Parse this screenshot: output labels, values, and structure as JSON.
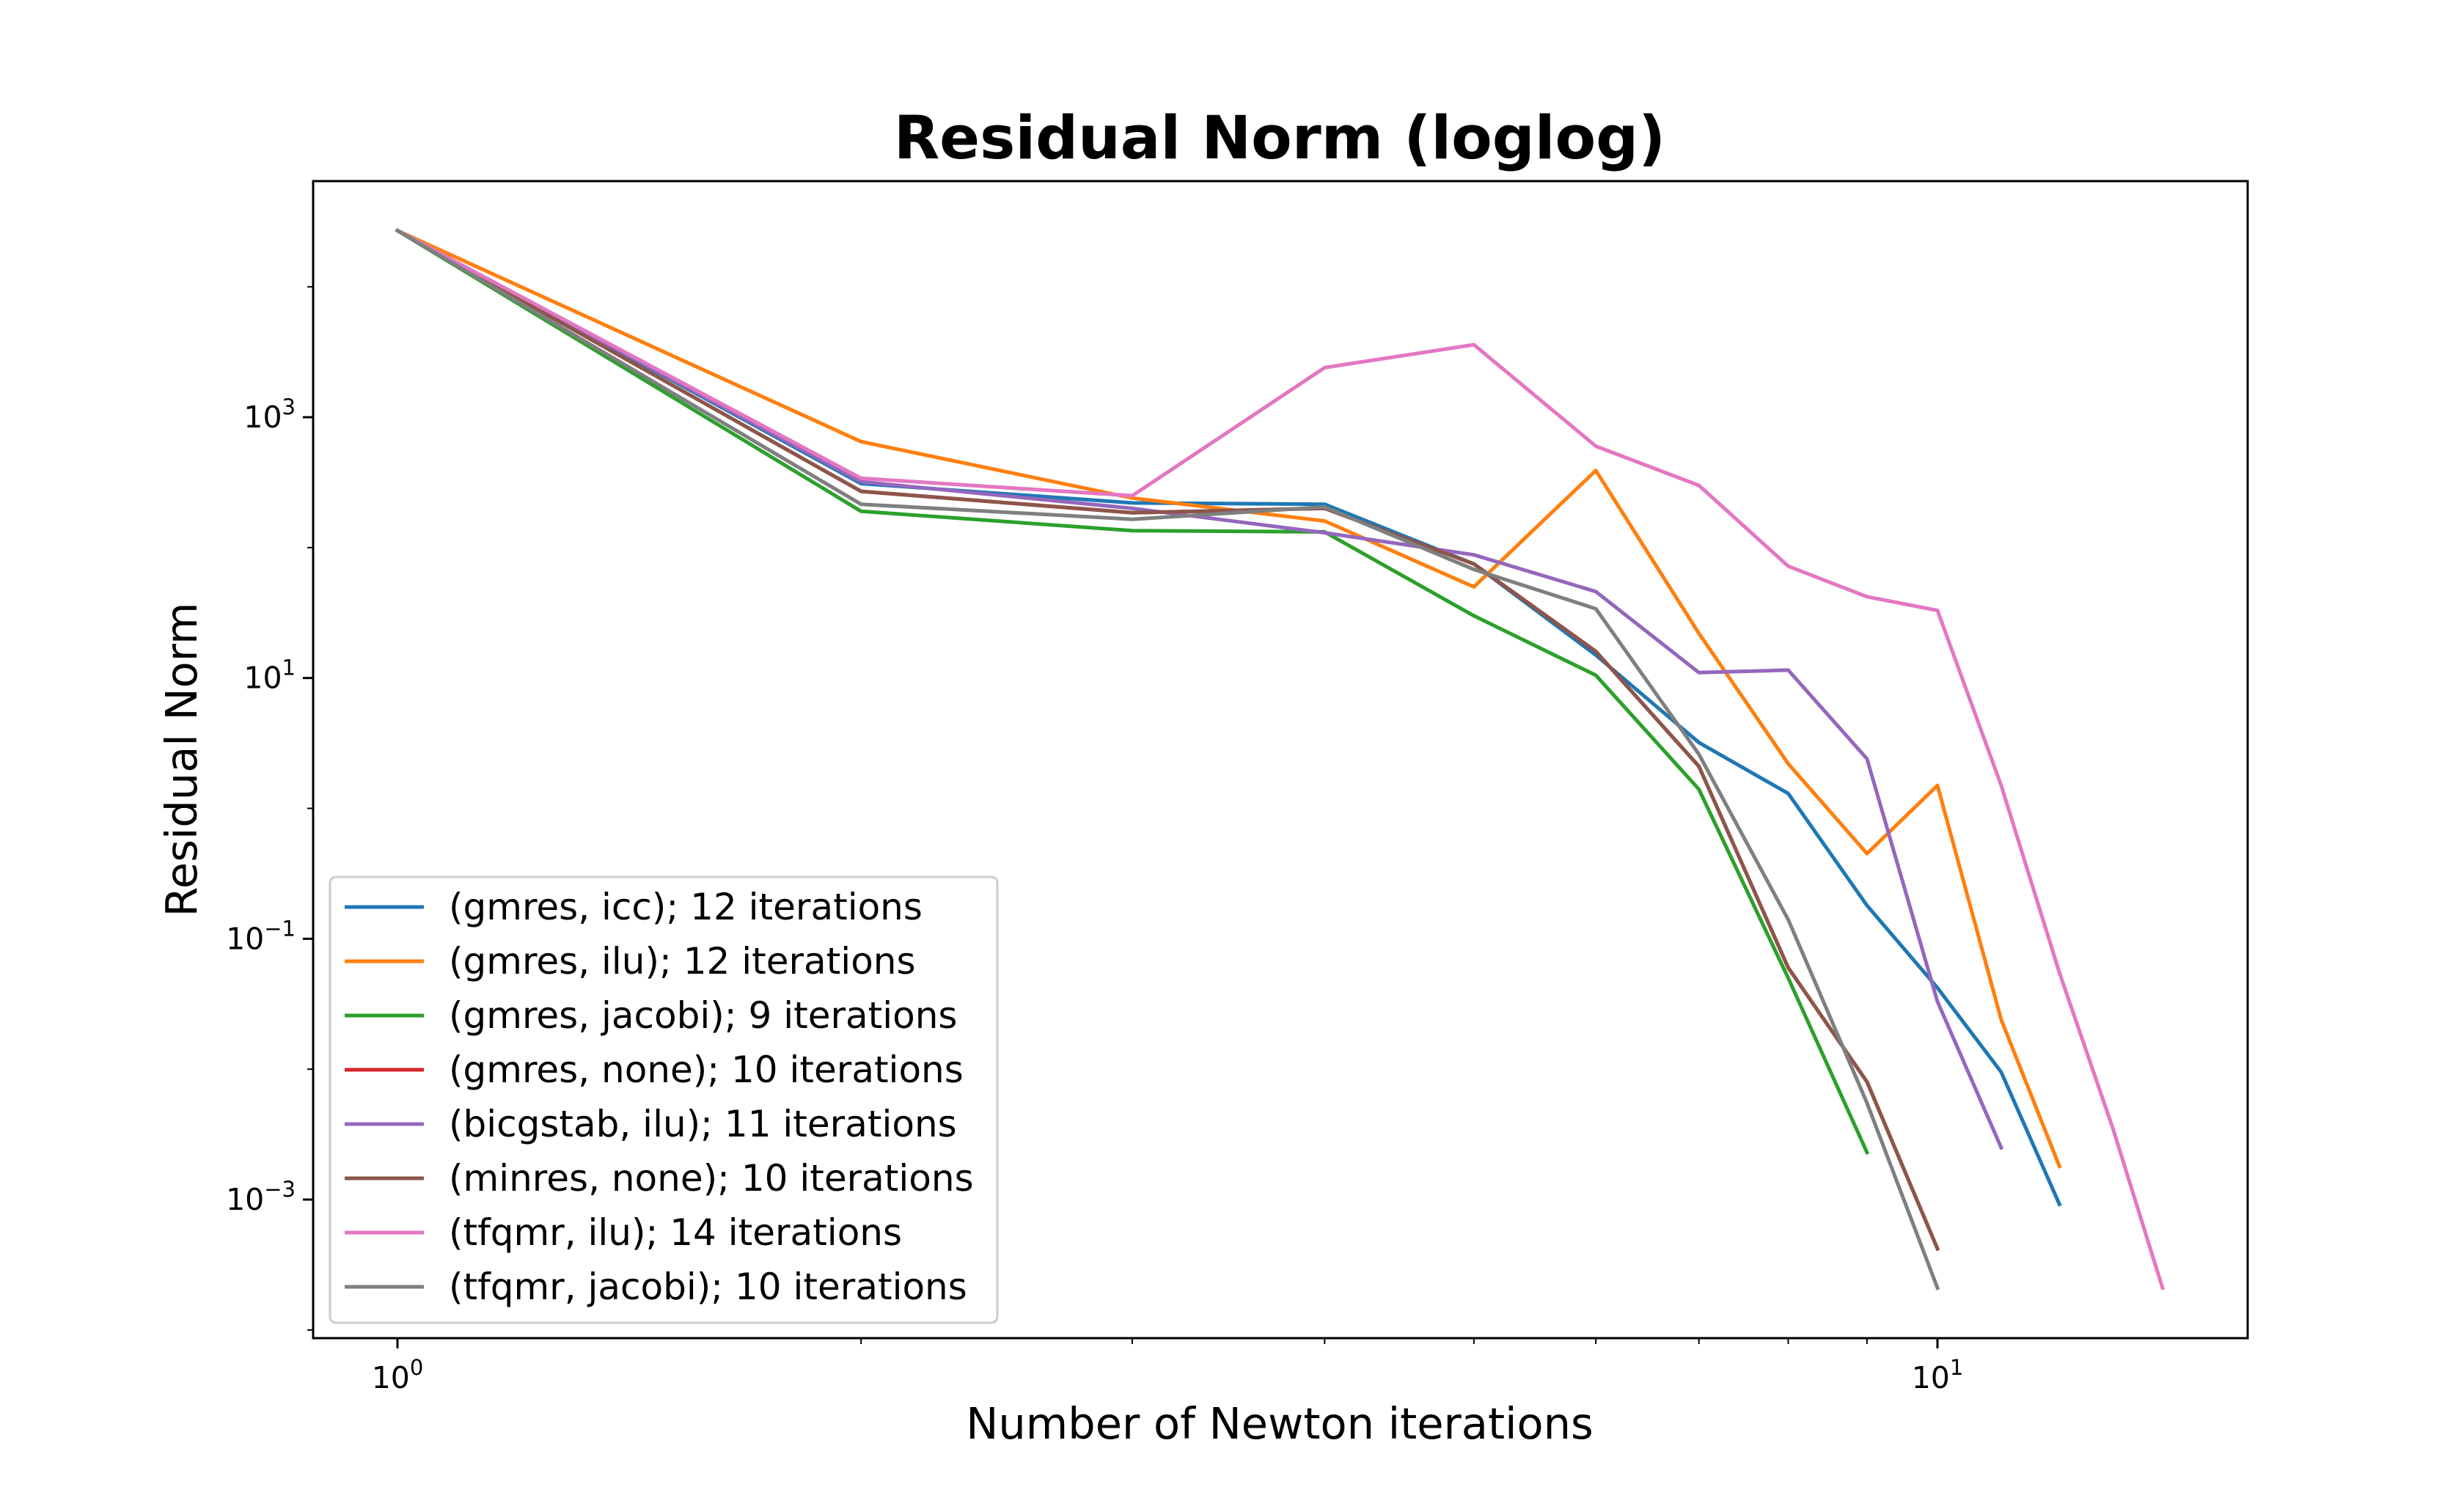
{
  "chart_data": {
    "type": "line",
    "title": "Residual Norm (loglog)",
    "xlabel": "Number of Newton iterations",
    "ylabel": "Residual Norm",
    "xscale": "log",
    "yscale": "log",
    "xlim": [
      0.95,
      16
    ],
    "ylim": [
      7e-05,
      60000
    ],
    "x_ticks": [
      {
        "base": "10",
        "exp": "0",
        "value": 1
      },
      {
        "base": "10",
        "exp": "1",
        "value": 10
      }
    ],
    "y_ticks": [
      {
        "base": "10",
        "exp": "3",
        "value": 1000
      },
      {
        "base": "10",
        "exp": "1",
        "value": 10
      },
      {
        "base": "10",
        "exp": "−1",
        "value": 0.1
      },
      {
        "base": "10",
        "exp": "−3",
        "value": 0.001
      }
    ],
    "grid": false,
    "legend_position": "lower-left",
    "series": [
      {
        "name": "(gmres, icc); 12 iterations",
        "color": "#1f77b4",
        "x": [
          1,
          2,
          3,
          4,
          5,
          6,
          7,
          8,
          9,
          10,
          11,
          12
        ],
        "y": [
          27000,
          310,
          220,
          215,
          75,
          15,
          3.2,
          1.3,
          0.18,
          0.042,
          0.0095,
          0.00092
        ]
      },
      {
        "name": "(gmres, ilu); 12 iterations",
        "color": "#ff7f0e",
        "x": [
          1,
          2,
          3,
          4,
          5,
          6,
          7,
          8,
          9,
          10,
          11,
          12
        ],
        "y": [
          27000,
          650,
          240,
          160,
          50,
          390,
          22,
          2.2,
          0.45,
          1.5,
          0.024,
          0.0018
        ]
      },
      {
        "name": "(gmres, jacobi); 9 iterations",
        "color": "#2ca02c",
        "x": [
          1,
          2,
          3,
          4,
          5,
          6,
          7,
          8,
          9
        ],
        "y": [
          27000,
          190,
          135,
          132,
          30,
          10.5,
          1.4,
          0.05,
          0.0023
        ]
      },
      {
        "name": "(gmres, none); 10 iterations",
        "color": "#d62728",
        "x": [
          1,
          2,
          3,
          4,
          5,
          6,
          7,
          8,
          9,
          10
        ],
        "y": [
          27000,
          270,
          185,
          200,
          75,
          16,
          2.1,
          0.06,
          0.008,
          0.00042
        ]
      },
      {
        "name": "(bicgstab, ilu); 11 iterations",
        "color": "#9467bd",
        "x": [
          1,
          2,
          3,
          4,
          5,
          6,
          7,
          8,
          9,
          10,
          11
        ],
        "y": [
          27000,
          320,
          200,
          130,
          88,
          46,
          11,
          11.5,
          2.4,
          0.033,
          0.0025
        ]
      },
      {
        "name": "(minres, none); 10 iterations",
        "color": "#8c564b",
        "x": [
          1,
          2,
          3,
          4,
          5,
          6,
          7,
          8,
          9,
          10
        ],
        "y": [
          27000,
          270,
          185,
          200,
          75,
          16,
          2.1,
          0.06,
          0.008,
          0.00042
        ]
      },
      {
        "name": "(tfqmr, ilu); 14 iterations",
        "color": "#e377c2",
        "x": [
          1,
          2,
          3,
          4,
          5,
          6,
          7,
          8,
          9,
          10,
          11,
          12,
          13,
          14
        ],
        "y": [
          27000,
          340,
          250,
          2400,
          3600,
          600,
          300,
          72,
          42,
          33,
          1.5,
          0.055,
          0.0035,
          0.00021
        ]
      },
      {
        "name": "(tfqmr, jacobi); 10 iterations",
        "color": "#7f7f7f",
        "x": [
          1,
          2,
          3,
          4,
          5,
          6,
          7,
          8,
          9,
          10
        ],
        "y": [
          27000,
          215,
          165,
          205,
          68,
          34,
          2.6,
          0.14,
          0.0055,
          0.00021
        ]
      }
    ]
  }
}
